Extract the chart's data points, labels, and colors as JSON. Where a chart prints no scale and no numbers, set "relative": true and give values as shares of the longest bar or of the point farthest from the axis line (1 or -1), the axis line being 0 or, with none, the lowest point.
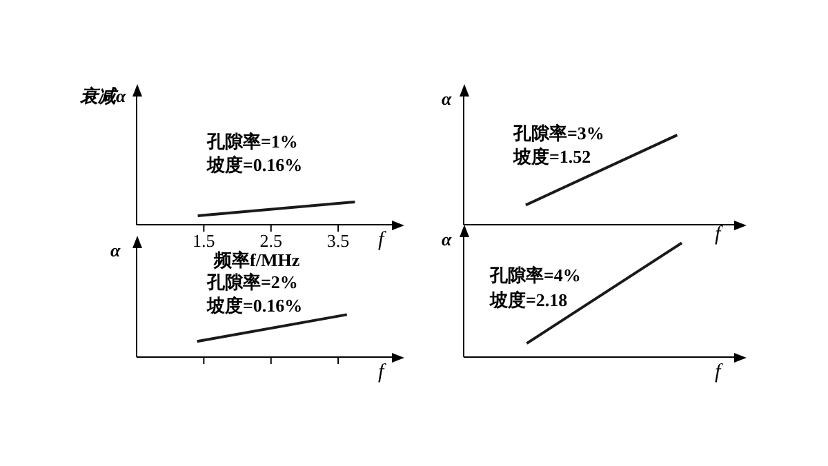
{
  "chart_data": [
    {
      "type": "line",
      "relative": true,
      "xlim": [
        0.5,
        4.3
      ],
      "xticks": [
        1.5,
        2.5,
        3.5
      ],
      "tick_labels": "x",
      "xlabel": "f",
      "ylabel": "衰减α",
      "annotations": [
        "频率f/MHz",
        "孔隙率=1%",
        "坡度=0.16%"
      ],
      "series": [
        {
          "color": "#1a1a1a",
          "x": [
            1.41,
            3.75
          ],
          "values": [
            0.39,
            1
          ]
        }
      ]
    },
    {
      "type": "line",
      "relative": true,
      "categories": [
        null,
        null
      ],
      "tick_labels": false,
      "xlabel": "f",
      "ylabel": "α",
      "annotations": [
        "孔隙率=3%",
        "坡度=1.52"
      ],
      "series": [
        {
          "color": "#1a1a1a",
          "values": [
            0.22,
            1
          ]
        }
      ]
    },
    {
      "type": "line",
      "relative": true,
      "xlim": [
        0.5,
        4.3
      ],
      "xticks": [
        {
          "value": 1.5,
          "label": null
        },
        {
          "value": 2.5,
          "label": null
        },
        {
          "value": 3.5,
          "label": null
        }
      ],
      "tick_labels": false,
      "xlabel": "f",
      "ylabel": "α",
      "annotations": [
        "孔隙率=2%",
        "坡度=0.16%"
      ],
      "series": [
        {
          "color": "#1a1a1a",
          "x": [
            1.4,
            3.63
          ],
          "values": [
            0.37,
            1
          ]
        }
      ]
    },
    {
      "type": "line",
      "relative": true,
      "categories": [
        null,
        null
      ],
      "tick_labels": false,
      "xlabel": "f",
      "ylabel": "α",
      "annotations": [
        "孔隙率=4%",
        "坡度=2.18"
      ],
      "series": [
        {
          "color": "#1a1a1a",
          "values": [
            0.12,
            1
          ]
        }
      ]
    }
  ]
}
